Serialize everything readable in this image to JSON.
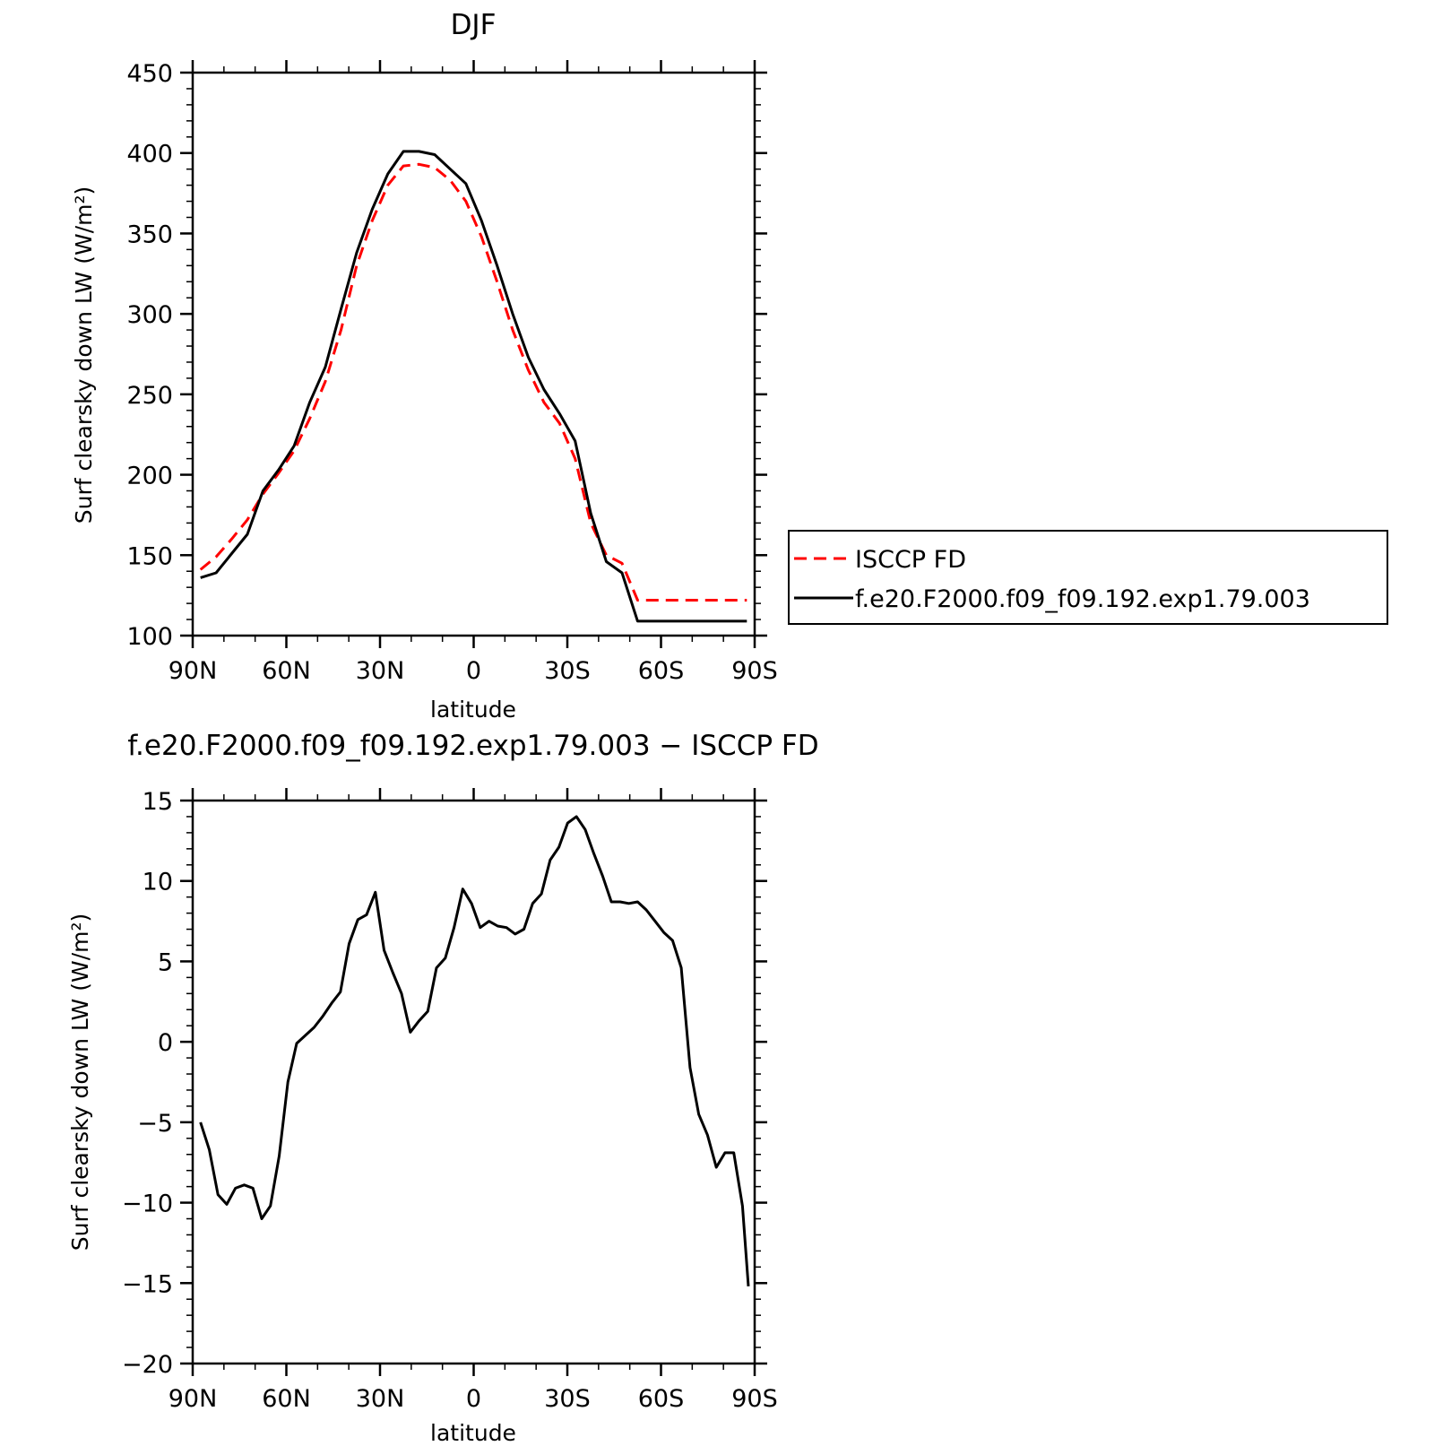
{
  "chart_data": [
    {
      "type": "line",
      "title": "DJF",
      "xlabel": "latitude",
      "ylabel": "Surf clearsky down LW (W/m²)",
      "xlim": [
        90,
        -90
      ],
      "ylim": [
        100,
        450
      ],
      "yticks": [
        100,
        150,
        200,
        250,
        300,
        350,
        400,
        450
      ],
      "xticks": [
        90,
        60,
        30,
        0,
        -30,
        -60,
        -90
      ],
      "xtick_labels": [
        "90N",
        "60N",
        "30N",
        "0",
        "30S",
        "60S",
        "90S"
      ],
      "legend": {
        "placement": "outside-right"
      },
      "x": [
        87.5,
        82.5,
        77.5,
        72.5,
        67.5,
        62.5,
        57.5,
        52.5,
        47.5,
        42.5,
        37.5,
        32.5,
        27.5,
        22.5,
        17.5,
        12.5,
        7.5,
        2.5,
        -2.5,
        -7.5,
        -12.5,
        -17.5,
        -22.5,
        -27.5,
        -32.5,
        -37.5,
        -42.5,
        -47.5,
        -52.5,
        -57.5,
        -62.5,
        -67.5,
        -72.5,
        -77.5,
        -82.5,
        -87.5
      ],
      "series": [
        {
          "name": "ISCCP FD",
          "color": "#ff0000",
          "dash": "dashed",
          "values": [
            141,
            149,
            160,
            172,
            188,
            201,
            215,
            235,
            258,
            290,
            330,
            358,
            380,
            392,
            393,
            391,
            383,
            370,
            348,
            320,
            290,
            265,
            245,
            232,
            210,
            170,
            150,
            145,
            122,
            122,
            122,
            122,
            122,
            122,
            122,
            122
          ]
        },
        {
          "name": "f.e20.F2000.f09_f09.192.exp1.79.003",
          "color": "#000000",
          "dash": "solid",
          "values": [
            136,
            139,
            151,
            163,
            190,
            203,
            218,
            245,
            267,
            303,
            338,
            365,
            387,
            401,
            401,
            399,
            390,
            381,
            358,
            330,
            300,
            273,
            253,
            238,
            221,
            176,
            146,
            139,
            109,
            109,
            109,
            109,
            109,
            109,
            109,
            109
          ]
        }
      ]
    },
    {
      "type": "line",
      "title": "f.e20.F2000.f09_f09.192.exp1.79.003 − ISCCP FD",
      "xlabel": "latitude",
      "ylabel": "Surf clearsky down LW (W/m²)",
      "xlim": [
        90,
        -90
      ],
      "ylim": [
        -20,
        15
      ],
      "yticks": [
        -20,
        -15,
        -10,
        -5,
        0,
        5,
        10,
        15
      ],
      "ytick_labels": [
        "−20",
        "−15",
        "−10",
        "−5",
        "0",
        "5",
        "10",
        "15"
      ],
      "xticks": [
        90,
        60,
        30,
        0,
        -30,
        -60,
        -90
      ],
      "xtick_labels": [
        "90N",
        "60N",
        "30N",
        "0",
        "30S",
        "60S",
        "90S"
      ],
      "x": [
        87.5,
        84.7,
        81.9,
        79.1,
        76.3,
        73.5,
        70.7,
        67.9,
        65.1,
        62.3,
        59.5,
        56.7,
        53.9,
        51.1,
        48.3,
        45.5,
        42.7,
        39.9,
        37.1,
        34.3,
        31.5,
        28.7,
        25.9,
        23.1,
        20.3,
        17.5,
        14.7,
        11.9,
        9.1,
        6.3,
        3.5,
        0.7,
        -2.1,
        -4.9,
        -7.7,
        -10.5,
        -13.3,
        -16.1,
        -18.9,
        -21.7,
        -24.5,
        -27.3,
        -30.1,
        -32.9,
        -35.7,
        -38.5,
        -41.3,
        -44.1,
        -46.9,
        -49.7,
        -52.5,
        -55.3,
        -58.1,
        -60.9,
        -63.7,
        -66.5,
        -69.3,
        -72.1,
        -74.9,
        -77.7,
        -80.5,
        -83.3,
        -86.1,
        -88.0
      ],
      "series": [
        {
          "color": "#000000",
          "values": [
            -5.0,
            -6.7,
            -9.5,
            -10.1,
            -9.1,
            -8.9,
            -9.1,
            -11.0,
            -10.2,
            -7.1,
            -2.5,
            -0.1,
            0.4,
            0.9,
            1.6,
            2.4,
            3.1,
            6.1,
            7.6,
            7.9,
            9.3,
            5.7,
            4.3,
            3.0,
            0.6,
            1.3,
            1.9,
            4.6,
            5.2,
            7.1,
            9.5,
            8.6,
            7.1,
            7.5,
            7.2,
            7.1,
            6.7,
            7.0,
            8.6,
            9.2,
            11.3,
            12.1,
            13.6,
            14.0,
            13.2,
            11.7,
            10.3,
            8.7,
            8.7,
            8.6,
            8.7,
            8.2,
            7.5,
            6.8,
            6.3,
            4.6,
            -1.6,
            -4.5,
            -5.8,
            -7.8,
            -6.9,
            -6.9,
            -10.2,
            -15.2
          ]
        }
      ]
    }
  ]
}
